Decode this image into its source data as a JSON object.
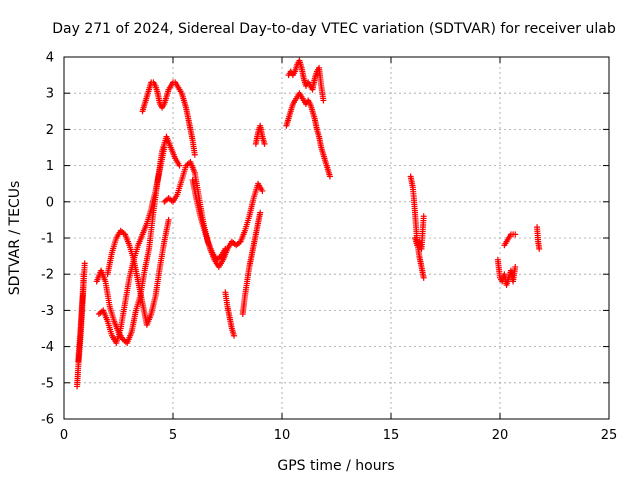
{
  "chart_data": {
    "type": "scatter",
    "title": "Day 271 of 2024, Sidereal Day-to-day VTEC variation (SDTVAR) for receiver ulab",
    "xlabel": "GPS time / hours",
    "ylabel": "SDTVAR / TECUs",
    "xlim": [
      0,
      25
    ],
    "ylim": [
      -6,
      4
    ],
    "xticks": [
      0,
      5,
      10,
      15,
      20,
      25
    ],
    "yticks": [
      -6,
      -5,
      -4,
      -3,
      -2,
      -1,
      0,
      1,
      2,
      3,
      4
    ],
    "xtick_labels": [
      "0",
      "5",
      "10",
      "15",
      "20",
      "25"
    ],
    "ytick_labels": [
      "-6",
      "-5",
      "-4",
      "-3",
      "-2",
      "-1",
      "0",
      "1",
      "2",
      "3",
      "4"
    ],
    "grid": true,
    "marker": "+",
    "color": "#ff0000",
    "series": [
      {
        "name": "s1",
        "x": [
          0.6,
          0.65,
          0.7,
          0.75,
          0.8,
          0.85,
          0.9,
          0.95
        ],
        "y": [
          -5.1,
          -4.6,
          -4.2,
          -3.8,
          -3.3,
          -2.8,
          -2.3,
          -1.7
        ]
      },
      {
        "name": "s2",
        "x": [
          0.65,
          0.7,
          0.75,
          0.8,
          0.85,
          0.9
        ],
        "y": [
          -4.4,
          -4.0,
          -3.6,
          -3.1,
          -2.6,
          -2.0
        ]
      },
      {
        "name": "s3",
        "x": [
          1.5,
          1.7,
          1.9,
          2.1,
          2.3,
          2.5,
          2.7,
          2.9,
          3.1,
          3.3,
          3.5,
          3.7,
          3.9,
          4.1,
          4.3,
          4.5,
          4.7,
          4.9,
          5.1,
          5.3
        ],
        "y": [
          -2.2,
          -1.9,
          -2.2,
          -2.9,
          -3.3,
          -3.6,
          -3.8,
          -3.9,
          -3.6,
          -3.0,
          -2.6,
          -1.9,
          -1.3,
          -0.3,
          0.6,
          1.4,
          1.8,
          1.5,
          1.2,
          1.0
        ]
      },
      {
        "name": "s4",
        "x": [
          1.6,
          1.8,
          2.0,
          2.2,
          2.4,
          2.6,
          2.8,
          3.0,
          3.2,
          3.4,
          3.6,
          3.8,
          4.0,
          4.2,
          4.4,
          4.6
        ],
        "y": [
          -3.1,
          -3.0,
          -3.3,
          -3.7,
          -3.9,
          -3.5,
          -2.8,
          -2.1,
          -1.6,
          -1.2,
          -0.9,
          -0.6,
          -0.2,
          0.3,
          0.9,
          1.5
        ]
      },
      {
        "name": "s5",
        "x": [
          2.0,
          2.2,
          2.4,
          2.6,
          2.8,
          3.0,
          3.2,
          3.4,
          3.6,
          3.8,
          4.0,
          4.2,
          4.4,
          4.6,
          4.8
        ],
        "y": [
          -2.0,
          -1.4,
          -1.0,
          -0.8,
          -0.9,
          -1.2,
          -1.6,
          -2.2,
          -2.8,
          -3.4,
          -3.1,
          -2.6,
          -1.8,
          -1.1,
          -0.5
        ]
      },
      {
        "name": "s6",
        "x": [
          3.6,
          3.7,
          3.8,
          3.9,
          4.0,
          4.1,
          4.2,
          4.3,
          4.4,
          4.5,
          4.6,
          4.7,
          4.8,
          4.9,
          5.0,
          5.1,
          5.2,
          5.3,
          5.4,
          5.5,
          5.6,
          5.7,
          5.8,
          5.9,
          6.0
        ],
        "y": [
          2.5,
          2.7,
          2.9,
          3.1,
          3.3,
          3.3,
          3.2,
          3.0,
          2.7,
          2.6,
          2.7,
          2.9,
          3.1,
          3.2,
          3.3,
          3.3,
          3.2,
          3.1,
          3.0,
          2.8,
          2.6,
          2.3,
          2.0,
          1.7,
          1.3
        ]
      },
      {
        "name": "s7",
        "x": [
          4.6,
          4.8,
          5.0,
          5.2,
          5.4,
          5.6,
          5.8,
          6.0,
          6.2,
          6.4,
          6.6,
          6.8,
          7.0,
          7.2,
          7.4
        ],
        "y": [
          0.0,
          0.1,
          0.0,
          0.2,
          0.6,
          1.0,
          1.1,
          0.8,
          0.1,
          -0.6,
          -1.1,
          -1.4,
          -1.6,
          -1.5,
          -1.3
        ]
      },
      {
        "name": "s8",
        "x": [
          5.9,
          6.1,
          6.3,
          6.5,
          6.7,
          6.9,
          7.1,
          7.3,
          7.5,
          7.7,
          7.9,
          8.1,
          8.3,
          8.5,
          8.7,
          8.9,
          9.1
        ],
        "y": [
          0.6,
          0.0,
          -0.5,
          -0.9,
          -1.3,
          -1.6,
          -1.8,
          -1.6,
          -1.3,
          -1.1,
          -1.2,
          -1.1,
          -0.8,
          -0.4,
          0.1,
          0.5,
          0.3
        ]
      },
      {
        "name": "s9",
        "x": [
          7.4,
          7.5,
          7.6,
          7.7,
          7.8
        ],
        "y": [
          -2.5,
          -2.9,
          -3.2,
          -3.5,
          -3.7
        ]
      },
      {
        "name": "s10",
        "x": [
          8.2,
          8.3,
          8.4,
          8.5,
          8.6,
          8.7,
          8.8,
          8.9,
          9.0
        ],
        "y": [
          -3.1,
          -2.6,
          -2.2,
          -1.8,
          -1.5,
          -1.2,
          -0.9,
          -0.6,
          -0.3
        ]
      },
      {
        "name": "s11",
        "x": [
          8.8,
          8.9,
          9.0,
          9.1,
          9.2
        ],
        "y": [
          1.6,
          1.9,
          2.1,
          1.8,
          1.6
        ]
      },
      {
        "name": "s12",
        "x": [
          10.2,
          10.3,
          10.4,
          10.5,
          10.6,
          10.7,
          10.8,
          10.9,
          11.0,
          11.1,
          11.2,
          11.3,
          11.4,
          11.5,
          11.6,
          11.7,
          11.8,
          11.9,
          12.0,
          12.1,
          12.2
        ],
        "y": [
          2.1,
          2.3,
          2.5,
          2.7,
          2.8,
          2.9,
          3.0,
          2.9,
          2.8,
          2.7,
          2.8,
          2.7,
          2.5,
          2.3,
          2.0,
          1.8,
          1.5,
          1.3,
          1.1,
          0.9,
          0.7
        ]
      },
      {
        "name": "s13",
        "x": [
          10.3,
          10.4,
          10.5,
          10.6,
          10.7,
          10.8,
          10.9,
          11.0,
          11.1,
          11.2,
          11.4,
          11.5,
          11.6,
          11.7,
          11.8,
          11.9
        ],
        "y": [
          3.5,
          3.6,
          3.5,
          3.6,
          3.8,
          3.9,
          3.7,
          3.4,
          3.2,
          3.3,
          3.1,
          3.4,
          3.6,
          3.7,
          3.2,
          2.8
        ]
      },
      {
        "name": "s14",
        "x": [
          15.9,
          16.0,
          16.05,
          16.1,
          16.15,
          16.2,
          16.3,
          16.4,
          16.5
        ],
        "y": [
          0.7,
          0.4,
          0.1,
          -0.3,
          -0.7,
          -1.1,
          -1.5,
          -1.8,
          -2.1
        ]
      },
      {
        "name": "s15",
        "x": [
          16.1,
          16.2,
          16.3,
          16.4,
          16.5
        ],
        "y": [
          -1.0,
          -1.2,
          -1.1,
          -1.3,
          -0.4
        ]
      },
      {
        "name": "s16",
        "x": [
          19.9,
          20.0,
          20.1,
          20.2,
          20.3,
          20.4,
          20.5,
          20.6,
          20.7
        ],
        "y": [
          -1.6,
          -2.1,
          -2.2,
          -2.0,
          -2.3,
          -2.1,
          -1.9,
          -2.2,
          -1.8
        ]
      },
      {
        "name": "s17",
        "x": [
          20.2,
          20.3,
          20.4,
          20.5,
          20.6,
          20.7
        ],
        "y": [
          -1.2,
          -1.1,
          -1.0,
          -0.9,
          -0.9,
          -0.9
        ]
      },
      {
        "name": "s18",
        "x": [
          21.7,
          21.75,
          21.8
        ],
        "y": [
          -0.7,
          -1.1,
          -1.3
        ]
      }
    ]
  }
}
